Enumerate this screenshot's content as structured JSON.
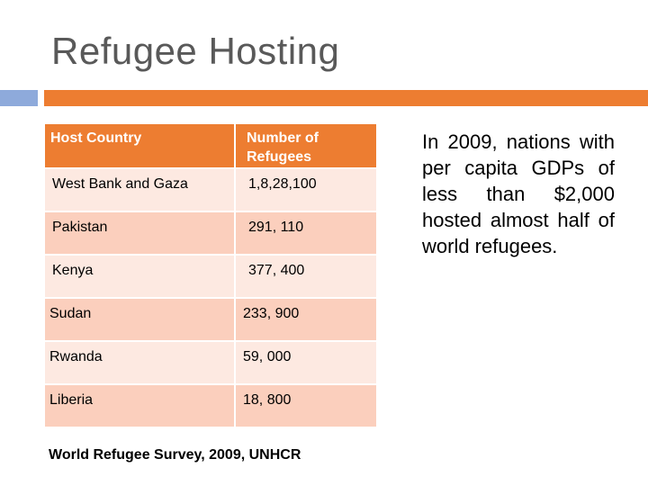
{
  "slide": {
    "title": "Refugee Hosting",
    "accent_color": "#ed7d31",
    "secondary_accent_color": "#8eaadb"
  },
  "table": {
    "headers": [
      "Host Country",
      "Number of Refugees"
    ],
    "rows": [
      {
        "country": "West Bank and Gaza",
        "refugees": "1,8,28,100"
      },
      {
        "country": "Pakistan",
        "refugees": "291, 110"
      },
      {
        "country": "Kenya",
        "refugees": "377, 400"
      },
      {
        "country": "Sudan",
        "refugees": "233, 900"
      },
      {
        "country": "Rwanda",
        "refugees": "59, 000"
      },
      {
        "country": "Liberia",
        "refugees": "18, 800"
      }
    ]
  },
  "source": "World Refugee Survey, 2009, UNHCR",
  "side_text": "In 2009, nations with per capita GDPs of less than $2,000 hosted almost half of world refugees."
}
